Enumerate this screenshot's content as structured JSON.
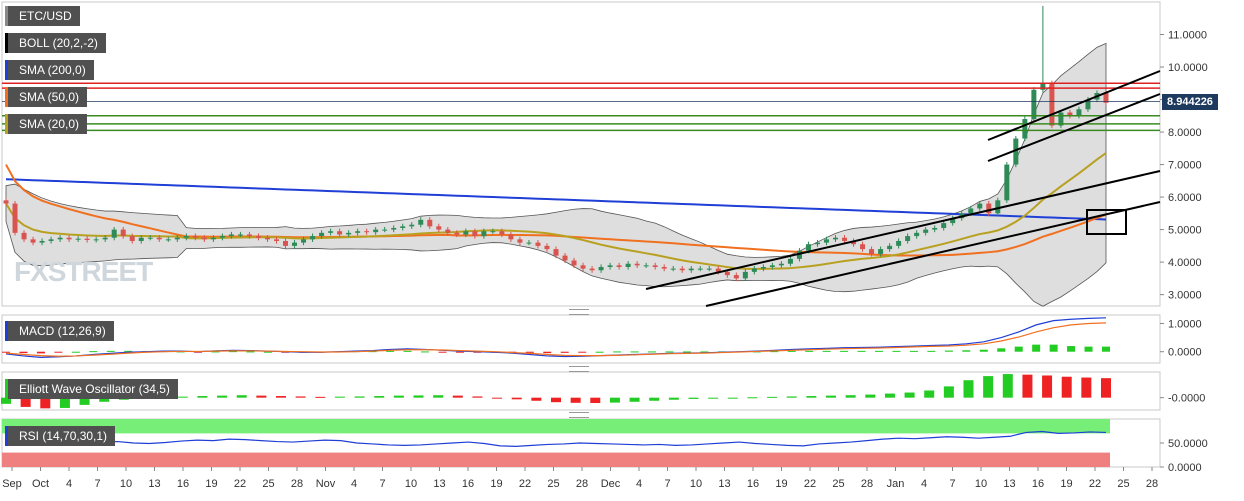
{
  "indicators": {
    "pair": "ETC/USD",
    "boll": "BOLL (20,2,-2)",
    "sma200": "SMA (200,0)",
    "sma50": "SMA (50,0)",
    "sma20": "SMA (20,0)",
    "macd": "MACD (12,26,9)",
    "ewo": "Elliott Wave Oscillator (34,5)",
    "rsi": "RSI (14,70,30,1)"
  },
  "watermark": "FXSTREET",
  "current_price": "8.944226",
  "colors": {
    "bull": "#2e8b57",
    "bear": "#d9534f",
    "sma200": "#1f3fd6",
    "sma50": "#f07020",
    "sma20": "#b8a020",
    "resistance": "#e02020",
    "support": "#3a8a20",
    "boll_fill": "#c8c8c8",
    "macd_line": "#1f3fd6",
    "signal_line": "#f07020",
    "hist_pos": "#22cc22",
    "hist_neg": "#ee2222",
    "rsi_line": "#1f3fd6",
    "rsi_overbought": "#77ee77",
    "rsi_oversold": "#f08080"
  },
  "chart_data": [
    {
      "type": "candlestick",
      "panel": "price",
      "y_ticks": [
        "11.0000",
        "10.0000",
        "9.0000",
        "8.0000",
        "7.0000",
        "6.0000",
        "5.0000",
        "4.0000",
        "3.0000"
      ],
      "y_range": [
        2.65,
        12.0
      ],
      "x_ticks": [
        "Sep",
        "Oct",
        "4",
        "7",
        "10",
        "13",
        "16",
        "19",
        "22",
        "25",
        "28",
        "Nov",
        "4",
        "7",
        "10",
        "13",
        "16",
        "19",
        "22",
        "25",
        "28",
        "Dec",
        "4",
        "7",
        "10",
        "13",
        "16",
        "19",
        "22",
        "25",
        "28",
        "Jan",
        "4",
        "7",
        "10",
        "13",
        "16",
        "19",
        "22",
        "25",
        "28"
      ],
      "closes": [
        5.8,
        4.9,
        4.7,
        4.6,
        4.65,
        4.7,
        4.75,
        4.7,
        4.72,
        4.68,
        4.7,
        4.75,
        5.0,
        4.8,
        4.65,
        4.75,
        4.75,
        4.7,
        4.7,
        4.75,
        4.8,
        4.75,
        4.7,
        4.75,
        4.8,
        4.85,
        4.85,
        4.8,
        4.75,
        4.7,
        4.65,
        4.5,
        4.6,
        4.7,
        4.8,
        4.9,
        4.95,
        4.85,
        4.9,
        4.95,
        4.92,
        5.0,
        5.0,
        5.05,
        5.1,
        5.15,
        5.3,
        5.1,
        5.0,
        4.9,
        4.85,
        4.95,
        4.8,
        4.95,
        4.95,
        4.85,
        4.7,
        4.6,
        4.6,
        4.5,
        4.4,
        4.2,
        4.05,
        3.9,
        3.8,
        3.75,
        3.85,
        3.9,
        3.85,
        3.95,
        3.9,
        3.9,
        3.85,
        3.8,
        3.8,
        3.75,
        3.8,
        3.8,
        3.8,
        3.7,
        3.6,
        3.5,
        3.7,
        3.8,
        3.85,
        3.9,
        3.95,
        4.1,
        4.35,
        4.55,
        4.6,
        4.7,
        4.75,
        4.65,
        4.55,
        4.4,
        4.25,
        4.4,
        4.5,
        4.65,
        4.8,
        4.9,
        5.0,
        5.05,
        5.2,
        5.35,
        5.5,
        5.65,
        5.8,
        5.5,
        5.9,
        7.0,
        7.8,
        8.4,
        9.3,
        9.5,
        8.2,
        8.6,
        8.5,
        8.7,
        9.0,
        9.2,
        8.9
      ],
      "resistance_levels": [
        9.5,
        9.35
      ],
      "support_levels": [
        8.5,
        8.25,
        8.05
      ],
      "current_price": 8.944226
    },
    {
      "type": "line",
      "panel": "macd",
      "y_ticks": [
        "1.0000",
        "0.0000"
      ],
      "y_range": [
        -0.4,
        1.3
      ],
      "series": [
        {
          "values": [
            -0.08,
            -0.15,
            -0.2,
            -0.18,
            -0.15,
            -0.1,
            -0.06,
            -0.02,
            0.0,
            0.02,
            0.02,
            0.0,
            0.03,
            0.05,
            0.04,
            0.02,
            0.0,
            -0.02,
            -0.02,
            0.0,
            0.02,
            0.04,
            0.08,
            0.1,
            0.08,
            0.05,
            0.02,
            0.0,
            -0.02,
            -0.05,
            -0.1,
            -0.15,
            -0.17,
            -0.16,
            -0.14,
            -0.12,
            -0.1,
            -0.08,
            -0.06,
            -0.05,
            -0.04,
            -0.02,
            0.0,
            0.02,
            0.05,
            0.08,
            0.1,
            0.12,
            0.14,
            0.15,
            0.16,
            0.18,
            0.2,
            0.22,
            0.24,
            0.28,
            0.35,
            0.5,
            0.7,
            0.95,
            1.1,
            1.15,
            1.18,
            1.2
          ]
        },
        {
          "values": [
            -0.05,
            -0.1,
            -0.14,
            -0.16,
            -0.15,
            -0.12,
            -0.09,
            -0.05,
            -0.02,
            0.0,
            0.01,
            0.01,
            0.02,
            0.03,
            0.03,
            0.02,
            0.01,
            0.0,
            -0.01,
            -0.01,
            0.0,
            0.02,
            0.05,
            0.07,
            0.07,
            0.06,
            0.04,
            0.02,
            0.0,
            -0.03,
            -0.06,
            -0.1,
            -0.13,
            -0.14,
            -0.14,
            -0.13,
            -0.11,
            -0.09,
            -0.07,
            -0.06,
            -0.05,
            -0.03,
            -0.01,
            0.01,
            0.03,
            0.05,
            0.07,
            0.09,
            0.11,
            0.12,
            0.13,
            0.15,
            0.17,
            0.19,
            0.2,
            0.23,
            0.28,
            0.38,
            0.52,
            0.7,
            0.85,
            0.95,
            1.0,
            1.02
          ]
        }
      ]
    },
    {
      "type": "bar",
      "panel": "elliott_wave_oscillator",
      "y_ticks": [
        "-0.0000"
      ],
      "y_range": [
        -0.6,
        1.25
      ],
      "values": [
        -0.3,
        -0.45,
        -0.52,
        -0.5,
        -0.35,
        -0.2,
        -0.1,
        -0.05,
        0.02,
        0.05,
        0.08,
        0.1,
        0.12,
        0.1,
        0.08,
        0.06,
        0.04,
        0.05,
        0.06,
        0.08,
        0.1,
        0.11,
        0.12,
        0.1,
        0.06,
        0.0,
        -0.08,
        -0.15,
        -0.22,
        -0.25,
        -0.26,
        -0.24,
        -0.2,
        -0.15,
        -0.1,
        -0.06,
        -0.03,
        0.0,
        0.02,
        0.04,
        0.06,
        0.08,
        0.1,
        0.12,
        0.15,
        0.2,
        0.25,
        0.35,
        0.55,
        0.85,
        1.05,
        1.15,
        1.12,
        1.08,
        1.02,
        0.98,
        0.95
      ]
    },
    {
      "type": "line",
      "panel": "rsi",
      "y_ticks": [
        "50.0000",
        "0.0000"
      ],
      "y_range": [
        0,
        100
      ],
      "overbought": 70,
      "oversold": 30,
      "values": [
        47,
        45,
        46,
        49,
        48,
        50,
        52,
        53,
        50,
        49,
        51,
        54,
        56,
        55,
        58,
        57,
        55,
        53,
        52,
        54,
        56,
        55,
        50,
        48,
        46,
        45,
        46,
        48,
        50,
        52,
        49,
        44,
        43,
        45,
        47,
        48,
        50,
        49,
        48,
        47,
        46,
        47,
        45,
        46,
        48,
        50,
        52,
        49,
        47,
        45,
        44,
        48,
        50,
        52,
        55,
        58,
        60,
        59,
        61,
        63,
        62,
        60,
        62,
        64,
        72,
        74,
        70,
        71,
        73,
        72
      ]
    }
  ]
}
